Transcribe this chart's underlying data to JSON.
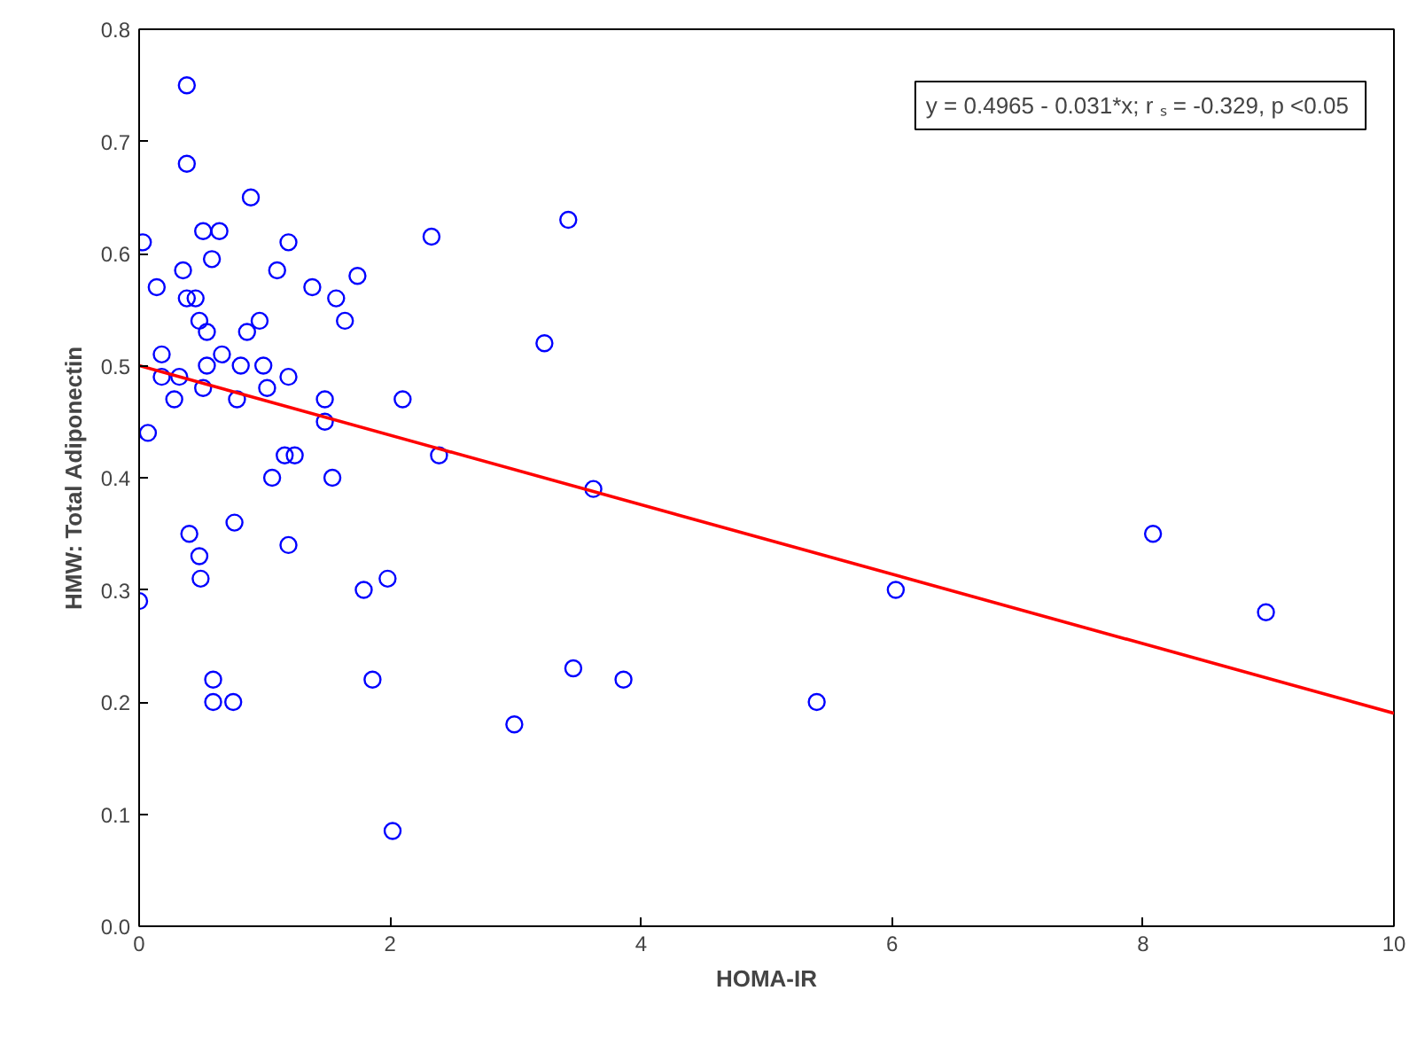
{
  "chart_data": {
    "type": "scatter",
    "xlabel": "HOMA-IR",
    "ylabel": "HMW: Total Adiponectin",
    "xlim": [
      0,
      10
    ],
    "ylim": [
      0,
      0.8
    ],
    "xticks": [
      0,
      2,
      4,
      6,
      8,
      10
    ],
    "yticks": [
      {
        "value": 0,
        "label": "0.0"
      },
      0.1,
      0.2,
      0.3,
      0.4,
      0.5,
      0.6,
      0.7,
      0.8
    ],
    "grid": false,
    "annotations": [
      "y = 0.4965 - 0.031*x;  r ₛ = -0.329, p <0.05"
    ],
    "series": [
      {
        "marker": "circle",
        "color": "#0000ff",
        "x": [
          0,
          0.03,
          0.07,
          0.14,
          0.18,
          0.18,
          0.28,
          0.32,
          0.35,
          0.38,
          0.38,
          0.38,
          0.4,
          0.45,
          0.48,
          0.48,
          0.49,
          0.51,
          0.54,
          0.54,
          0.51,
          0.58,
          0.59,
          0.59,
          0.64,
          0.66,
          0.75,
          0.76,
          0.78,
          0.81,
          0.86,
          0.89,
          0.96,
          0.99,
          1.02,
          1.06,
          1.1,
          1.16,
          1.19,
          1.19,
          1.19,
          1.24,
          1.38,
          1.48,
          1.48,
          1.54,
          1.57,
          1.64,
          1.74,
          1.79,
          1.86,
          1.98,
          2.02,
          2.1,
          2.33,
          2.39,
          2.99,
          3.23,
          3.42,
          3.46,
          3.62,
          3.86,
          5.4,
          6.03,
          8.08,
          8.98
        ],
        "values": [
          0.29,
          0.61,
          0.44,
          0.57,
          0.51,
          0.49,
          0.47,
          0.49,
          0.585,
          0.75,
          0.68,
          0.56,
          0.35,
          0.56,
          0.54,
          0.33,
          0.31,
          0.62,
          0.53,
          0.5,
          0.48,
          0.595,
          0.22,
          0.2,
          0.62,
          0.51,
          0.2,
          0.36,
          0.47,
          0.5,
          0.53,
          0.65,
          0.54,
          0.5,
          0.48,
          0.4,
          0.585,
          0.42,
          0.61,
          0.49,
          0.34,
          0.42,
          0.57,
          0.47,
          0.45,
          0.4,
          0.56,
          0.54,
          0.58,
          0.3,
          0.22,
          0.31,
          0.085,
          0.47,
          0.615,
          0.42,
          0.18,
          0.52,
          0.63,
          0.23,
          0.39,
          0.22,
          0.2,
          0.3,
          0.35,
          0.28
        ]
      },
      {
        "type": "line",
        "color": "#ff0000",
        "x": [
          0,
          10
        ],
        "values": [
          0.5,
          0.19
        ]
      }
    ]
  }
}
